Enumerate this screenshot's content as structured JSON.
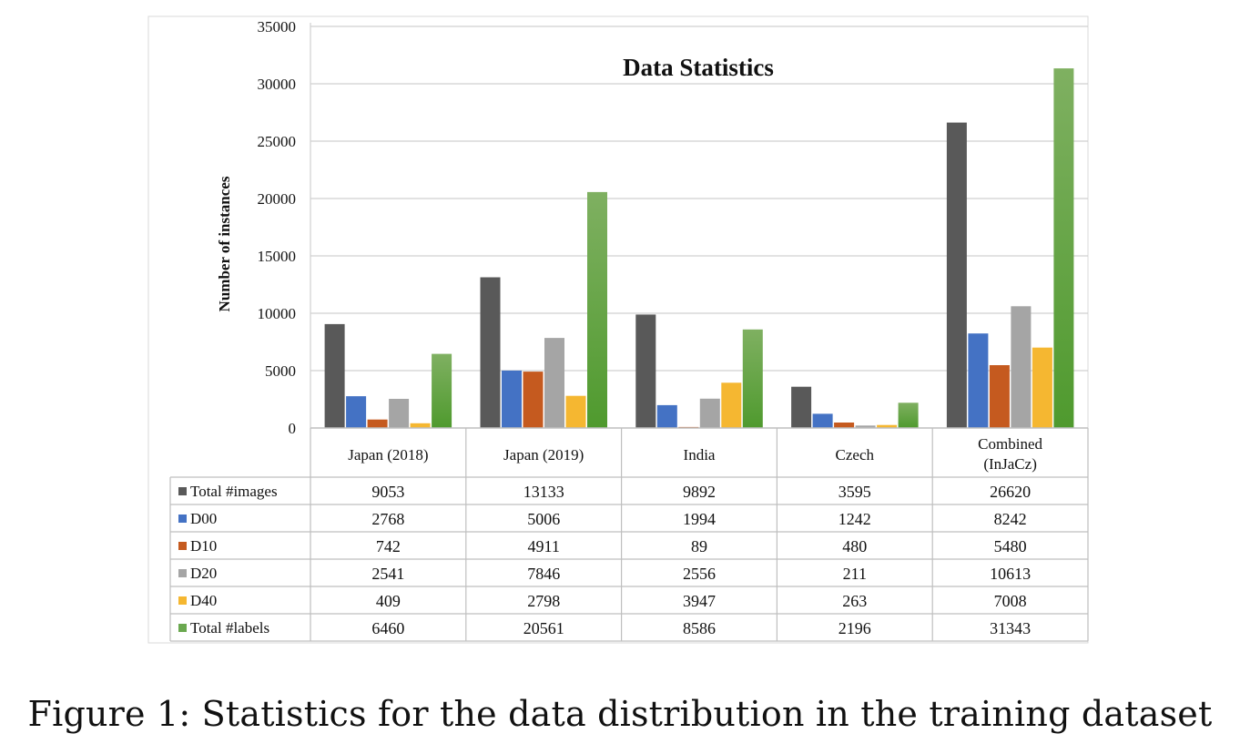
{
  "chart_data": {
    "type": "bar",
    "title": "Data Statistics",
    "ylabel": "Number of instances",
    "xlabel": "",
    "ylim": [
      0,
      35000
    ],
    "yticks": [
      0,
      5000,
      10000,
      15000,
      20000,
      25000,
      30000,
      35000
    ],
    "grid": true,
    "legend": "table-rows",
    "categories": [
      "Japan (2018)",
      "Japan (2019)",
      "India",
      "Czech",
      "Combined\n(InJaCz)"
    ],
    "series": [
      {
        "name": "Total #images",
        "color": "#595959",
        "values": [
          9053,
          13133,
          9892,
          3595,
          26620
        ]
      },
      {
        "name": "D00",
        "color": "#4472c4",
        "values": [
          2768,
          5006,
          1994,
          1242,
          8242
        ]
      },
      {
        "name": "D10",
        "color": "#c55a1f",
        "values": [
          742,
          4911,
          89,
          480,
          5480
        ]
      },
      {
        "name": "D20",
        "color": "#a5a5a5",
        "values": [
          2541,
          7846,
          2556,
          211,
          10613
        ]
      },
      {
        "name": "D40",
        "color": "#f5b731",
        "values": [
          409,
          2798,
          3947,
          263,
          7008
        ]
      },
      {
        "name": "Total #labels",
        "color": "#6aa84f",
        "values": [
          6460,
          20561,
          8586,
          2196,
          31343
        ]
      }
    ]
  },
  "caption": "Figure 1: Statistics for the data distribution in the training dataset"
}
